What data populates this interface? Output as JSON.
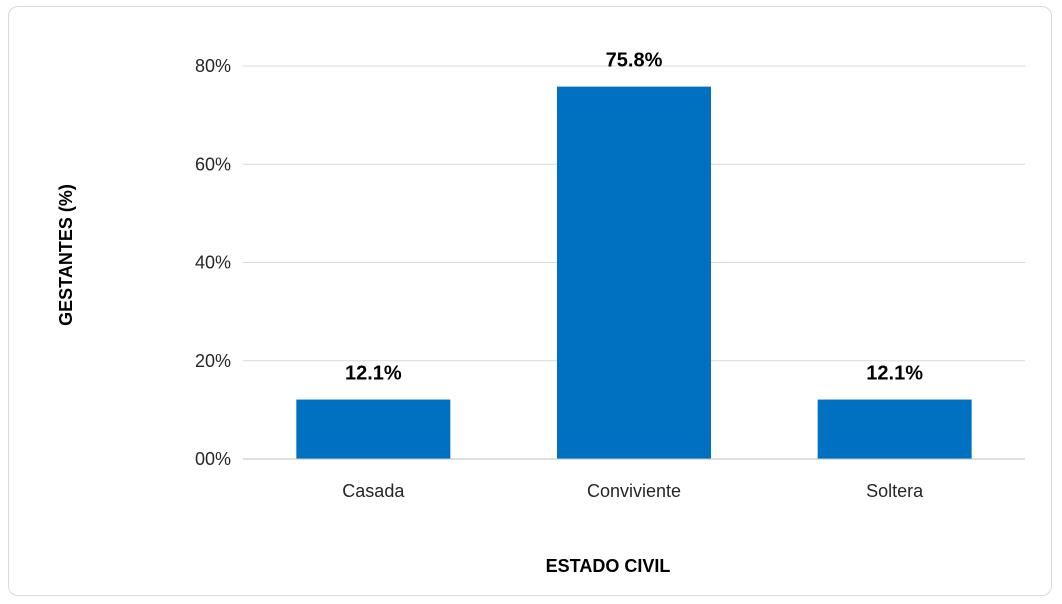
{
  "chart_data": {
    "type": "bar",
    "categories": [
      "Casada",
      "Conviviente",
      "Soltera"
    ],
    "values": [
      12.1,
      75.8,
      12.1
    ],
    "data_labels": [
      "12.1%",
      "75.8%",
      "12.1%"
    ],
    "xlabel": "ESTADO CIVIL",
    "ylabel": "GESTANTES (%)",
    "ylim": [
      0,
      80
    ],
    "yticks": [
      0,
      20,
      40,
      60,
      80
    ],
    "ytick_labels": [
      "00%",
      "20%",
      "40%",
      "60%",
      "80%"
    ],
    "grid": true,
    "bar_color": "#0070c0"
  }
}
